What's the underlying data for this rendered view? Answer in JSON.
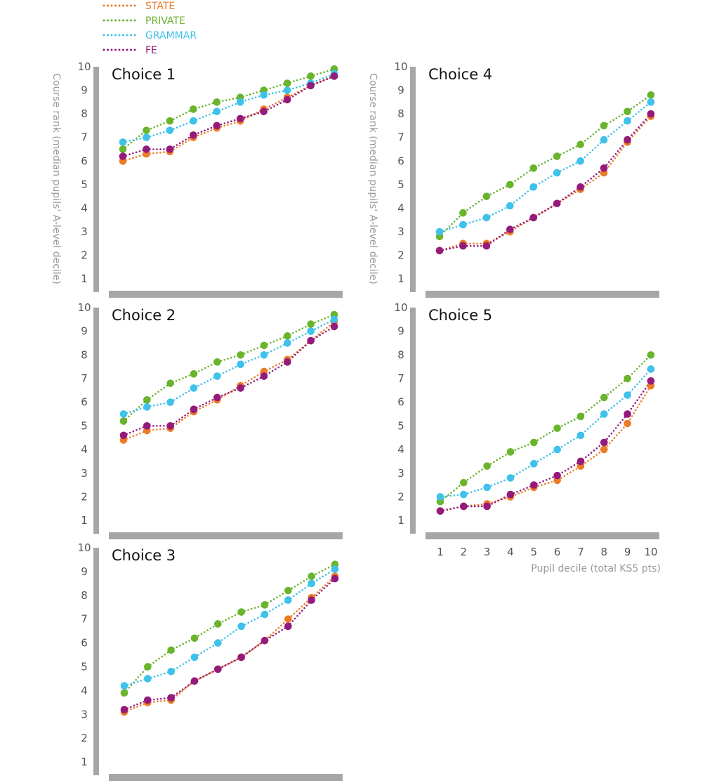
{
  "colors": {
    "STATE": "#ec7b26",
    "PRIVATE": "#6ab42d",
    "GRAMMAR": "#3ec1ea",
    "FE": "#951a7d",
    "axis": "#a6a6a6"
  },
  "legend": [
    "STATE",
    "PRIVATE",
    "GRAMMAR",
    "FE"
  ],
  "y_axis_label": "Course rank (median pupils' A-level decile)",
  "x_axis_label": "Pupil decile (total KS5 pts)",
  "chart_data": [
    {
      "type": "line",
      "title": "Choice 1",
      "ylabel": "Course rank (median pupils' A-level decile)",
      "xlabel": "",
      "ylim": [
        0.5,
        10
      ],
      "y_ticks": [
        "1",
        "2",
        "3",
        "4",
        "5",
        "6",
        "7",
        "8",
        "9",
        "10"
      ],
      "x_ticks": [],
      "x": [
        1,
        2,
        3,
        4,
        5,
        6,
        7,
        8,
        9,
        10
      ],
      "series": [
        {
          "name": "STATE",
          "values": [
            6.0,
            6.3,
            6.4,
            7.0,
            7.4,
            7.7,
            8.2,
            8.7,
            9.2,
            9.6
          ]
        },
        {
          "name": "PRIVATE",
          "values": [
            6.5,
            7.3,
            7.7,
            8.2,
            8.5,
            8.7,
            9.0,
            9.3,
            9.6,
            9.9
          ]
        },
        {
          "name": "GRAMMAR",
          "values": [
            6.8,
            7.0,
            7.3,
            7.7,
            8.1,
            8.5,
            8.8,
            9.0,
            9.3,
            9.7
          ]
        },
        {
          "name": "FE",
          "values": [
            6.2,
            6.5,
            6.5,
            7.1,
            7.5,
            7.8,
            8.1,
            8.6,
            9.2,
            9.6
          ]
        }
      ]
    },
    {
      "type": "line",
      "title": "Choice 2",
      "ylabel": "",
      "xlabel": "",
      "ylim": [
        0.5,
        10
      ],
      "y_ticks": [
        "1",
        "2",
        "3",
        "4",
        "5",
        "6",
        "7",
        "8",
        "9",
        "10"
      ],
      "x_ticks": [],
      "x": [
        1,
        2,
        3,
        4,
        5,
        6,
        7,
        8,
        9,
        10
      ],
      "series": [
        {
          "name": "STATE",
          "values": [
            4.4,
            4.8,
            4.9,
            5.6,
            6.1,
            6.7,
            7.3,
            7.8,
            8.6,
            9.4
          ]
        },
        {
          "name": "PRIVATE",
          "values": [
            5.2,
            6.1,
            6.8,
            7.2,
            7.7,
            8.0,
            8.4,
            8.8,
            9.3,
            9.7
          ]
        },
        {
          "name": "GRAMMAR",
          "values": [
            5.5,
            5.8,
            6.0,
            6.6,
            7.1,
            7.6,
            8.0,
            8.5,
            9.0,
            9.5
          ]
        },
        {
          "name": "FE",
          "values": [
            4.6,
            5.0,
            5.0,
            5.7,
            6.2,
            6.6,
            7.1,
            7.7,
            8.6,
            9.2
          ]
        }
      ]
    },
    {
      "type": "line",
      "title": "Choice 3",
      "ylabel": "",
      "xlabel": "",
      "ylim": [
        0.5,
        10
      ],
      "y_ticks": [
        "1",
        "2",
        "3",
        "4",
        "5",
        "6",
        "7",
        "8",
        "9",
        "10"
      ],
      "x_ticks": [],
      "x": [
        1,
        2,
        3,
        4,
        5,
        6,
        7,
        8,
        9,
        10
      ],
      "series": [
        {
          "name": "STATE",
          "values": [
            3.1,
            3.5,
            3.6,
            4.4,
            4.9,
            5.4,
            6.1,
            7.0,
            7.9,
            8.8
          ]
        },
        {
          "name": "PRIVATE",
          "values": [
            3.9,
            5.0,
            5.7,
            6.2,
            6.8,
            7.3,
            7.6,
            8.2,
            8.8,
            9.3
          ]
        },
        {
          "name": "GRAMMAR",
          "values": [
            4.2,
            4.5,
            4.8,
            5.4,
            6.0,
            6.7,
            7.2,
            7.8,
            8.5,
            9.1
          ]
        },
        {
          "name": "FE",
          "values": [
            3.2,
            3.6,
            3.7,
            4.4,
            4.9,
            5.4,
            6.1,
            6.7,
            7.8,
            8.7
          ]
        }
      ]
    },
    {
      "type": "line",
      "title": "Choice 4",
      "ylabel": "Course rank (median pupils' A-level decile)",
      "xlabel": "",
      "ylim": [
        0.5,
        10
      ],
      "y_ticks": [
        "1",
        "2",
        "3",
        "4",
        "5",
        "6",
        "7",
        "8",
        "9",
        "10"
      ],
      "x_ticks": [],
      "x": [
        1,
        2,
        3,
        4,
        5,
        6,
        7,
        8,
        9,
        10
      ],
      "series": [
        {
          "name": "STATE",
          "values": [
            2.2,
            2.5,
            2.5,
            3.0,
            3.6,
            4.2,
            4.8,
            5.5,
            6.8,
            7.9
          ]
        },
        {
          "name": "PRIVATE",
          "values": [
            2.8,
            3.8,
            4.5,
            5.0,
            5.7,
            6.2,
            6.7,
            7.5,
            8.1,
            8.8
          ]
        },
        {
          "name": "GRAMMAR",
          "values": [
            3.0,
            3.3,
            3.6,
            4.1,
            4.9,
            5.5,
            6.0,
            6.9,
            7.7,
            8.5
          ]
        },
        {
          "name": "FE",
          "values": [
            2.2,
            2.4,
            2.4,
            3.1,
            3.6,
            4.2,
            4.9,
            5.7,
            6.9,
            8.0
          ]
        }
      ]
    },
    {
      "type": "line",
      "title": "Choice 5",
      "ylabel": "",
      "xlabel": "Pupil decile (total KS5 pts)",
      "ylim": [
        0.5,
        10
      ],
      "y_ticks": [
        "1",
        "2",
        "3",
        "4",
        "5",
        "6",
        "7",
        "8",
        "9",
        "10"
      ],
      "x_ticks": [
        "1",
        "2",
        "3",
        "4",
        "5",
        "6",
        "7",
        "8",
        "9",
        "10"
      ],
      "x": [
        1,
        2,
        3,
        4,
        5,
        6,
        7,
        8,
        9,
        10
      ],
      "series": [
        {
          "name": "STATE",
          "values": [
            1.4,
            1.6,
            1.7,
            2.0,
            2.4,
            2.7,
            3.3,
            4.0,
            5.1,
            6.7
          ]
        },
        {
          "name": "PRIVATE",
          "values": [
            1.8,
            2.6,
            3.3,
            3.9,
            4.3,
            4.9,
            5.4,
            6.2,
            7.0,
            8.0
          ]
        },
        {
          "name": "GRAMMAR",
          "values": [
            2.0,
            2.1,
            2.4,
            2.8,
            3.4,
            4.0,
            4.6,
            5.5,
            6.3,
            7.4
          ]
        },
        {
          "name": "FE",
          "values": [
            1.4,
            1.6,
            1.6,
            2.1,
            2.5,
            2.9,
            3.5,
            4.3,
            5.5,
            6.9
          ]
        }
      ]
    }
  ]
}
